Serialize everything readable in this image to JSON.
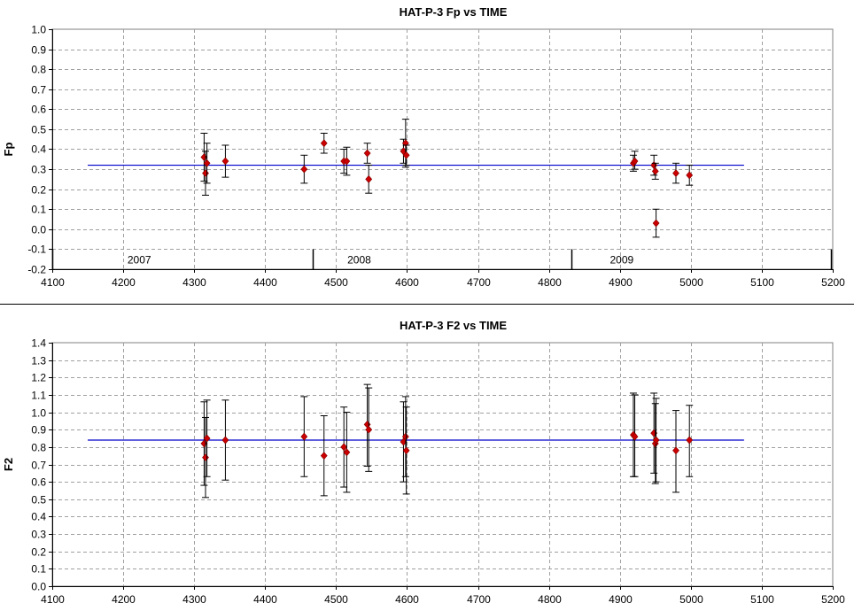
{
  "chart_data": [
    {
      "type": "scatter",
      "title": "HAT-P-3 Fp vs TIME",
      "xlabel": "",
      "ylabel": "Fp",
      "xlim": [
        4100,
        5200
      ],
      "ylim": [
        -0.2,
        1.0
      ],
      "x_ticks": [
        4100,
        4200,
        4300,
        4400,
        4500,
        4600,
        4700,
        4800,
        4900,
        5000,
        5100,
        5200
      ],
      "y_ticks": [
        "-0.2",
        "-0.1",
        "0.0",
        "0.1",
        "0.2",
        "0.3",
        "0.4",
        "0.5",
        "0.6",
        "0.7",
        "0.8",
        "0.9",
        "1.0"
      ],
      "grid": true,
      "marker_color": "#cc0000",
      "line_color": "#0000cc",
      "mean_line": {
        "y": 0.32,
        "x_start": 4150,
        "x_end": 5075
      },
      "year_labels": [
        {
          "label": "2007",
          "x": 4330
        },
        {
          "label": "2008",
          "x": 4640
        },
        {
          "label": "2009",
          "x": 5010
        }
      ],
      "year_dividers": [
        4100,
        4467,
        4832,
        5198
      ],
      "points": [
        {
          "x": 4314,
          "y": 0.36,
          "lo": 0.24,
          "hi": 0.48
        },
        {
          "x": 4316,
          "y": 0.28,
          "lo": 0.17,
          "hi": 0.39
        },
        {
          "x": 4318,
          "y": 0.33,
          "lo": 0.23,
          "hi": 0.43
        },
        {
          "x": 4344,
          "y": 0.34,
          "lo": 0.26,
          "hi": 0.42
        },
        {
          "x": 4455,
          "y": 0.3,
          "lo": 0.23,
          "hi": 0.37
        },
        {
          "x": 4483,
          "y": 0.43,
          "lo": 0.38,
          "hi": 0.48
        },
        {
          "x": 4511,
          "y": 0.34,
          "lo": 0.28,
          "hi": 0.4
        },
        {
          "x": 4515,
          "y": 0.34,
          "lo": 0.27,
          "hi": 0.41
        },
        {
          "x": 4544,
          "y": 0.38,
          "lo": 0.33,
          "hi": 0.43
        },
        {
          "x": 4546,
          "y": 0.25,
          "lo": 0.18,
          "hi": 0.32
        },
        {
          "x": 4595,
          "y": 0.39,
          "lo": 0.33,
          "hi": 0.45
        },
        {
          "x": 4598,
          "y": 0.43,
          "lo": 0.31,
          "hi": 0.55
        },
        {
          "x": 4599,
          "y": 0.37,
          "lo": 0.32,
          "hi": 0.42
        },
        {
          "x": 4919,
          "y": 0.33,
          "lo": 0.29,
          "hi": 0.37
        },
        {
          "x": 4921,
          "y": 0.34,
          "lo": 0.3,
          "hi": 0.39
        },
        {
          "x": 4948,
          "y": 0.32,
          "lo": 0.27,
          "hi": 0.37
        },
        {
          "x": 4950,
          "y": 0.29,
          "lo": 0.25,
          "hi": 0.33
        },
        {
          "x": 4951,
          "y": 0.03,
          "lo": -0.04,
          "hi": 0.1
        },
        {
          "x": 4979,
          "y": 0.28,
          "lo": 0.23,
          "hi": 0.33
        },
        {
          "x": 4998,
          "y": 0.27,
          "lo": 0.22,
          "hi": 0.32
        }
      ]
    },
    {
      "type": "scatter",
      "title": "HAT-P-3 F2 vs TIME",
      "xlabel": "",
      "ylabel": "F2",
      "xlim": [
        4100,
        5200
      ],
      "ylim": [
        0.0,
        1.4
      ],
      "x_ticks": [
        4100,
        4200,
        4300,
        4400,
        4500,
        4600,
        4700,
        4800,
        4900,
        5000,
        5100,
        5200
      ],
      "y_ticks": [
        "0.0",
        "0.1",
        "0.2",
        "0.3",
        "0.4",
        "0.5",
        "0.6",
        "0.7",
        "0.8",
        "0.9",
        "1.0",
        "1.1",
        "1.2",
        "1.3",
        "1.4"
      ],
      "grid": true,
      "marker_color": "#cc0000",
      "line_color": "#0000cc",
      "mean_line": {
        "y": 0.84,
        "x_start": 4150,
        "x_end": 5075
      },
      "points": [
        {
          "x": 4314,
          "y": 0.82,
          "lo": 0.58,
          "hi": 1.06
        },
        {
          "x": 4316,
          "y": 0.74,
          "lo": 0.51,
          "hi": 0.97
        },
        {
          "x": 4318,
          "y": 0.85,
          "lo": 0.63,
          "hi": 1.07
        },
        {
          "x": 4344,
          "y": 0.84,
          "lo": 0.61,
          "hi": 1.07
        },
        {
          "x": 4455,
          "y": 0.86,
          "lo": 0.63,
          "hi": 1.09
        },
        {
          "x": 4483,
          "y": 0.75,
          "lo": 0.52,
          "hi": 0.98
        },
        {
          "x": 4511,
          "y": 0.8,
          "lo": 0.57,
          "hi": 1.03
        },
        {
          "x": 4515,
          "y": 0.77,
          "lo": 0.54,
          "hi": 1.0
        },
        {
          "x": 4544,
          "y": 0.93,
          "lo": 0.69,
          "hi": 1.16
        },
        {
          "x": 4546,
          "y": 0.9,
          "lo": 0.66,
          "hi": 1.14
        },
        {
          "x": 4595,
          "y": 0.83,
          "lo": 0.6,
          "hi": 1.06
        },
        {
          "x": 4598,
          "y": 0.86,
          "lo": 0.63,
          "hi": 1.09
        },
        {
          "x": 4599,
          "y": 0.78,
          "lo": 0.53,
          "hi": 1.03
        },
        {
          "x": 4919,
          "y": 0.87,
          "lo": 0.63,
          "hi": 1.11
        },
        {
          "x": 4921,
          "y": 0.86,
          "lo": 0.63,
          "hi": 1.1
        },
        {
          "x": 4948,
          "y": 0.88,
          "lo": 0.65,
          "hi": 1.11
        },
        {
          "x": 4950,
          "y": 0.82,
          "lo": 0.59,
          "hi": 1.05
        },
        {
          "x": 4951,
          "y": 0.84,
          "lo": 0.6,
          "hi": 1.08
        },
        {
          "x": 4979,
          "y": 0.78,
          "lo": 0.54,
          "hi": 1.01
        },
        {
          "x": 4998,
          "y": 0.84,
          "lo": 0.63,
          "hi": 1.04
        }
      ]
    }
  ]
}
